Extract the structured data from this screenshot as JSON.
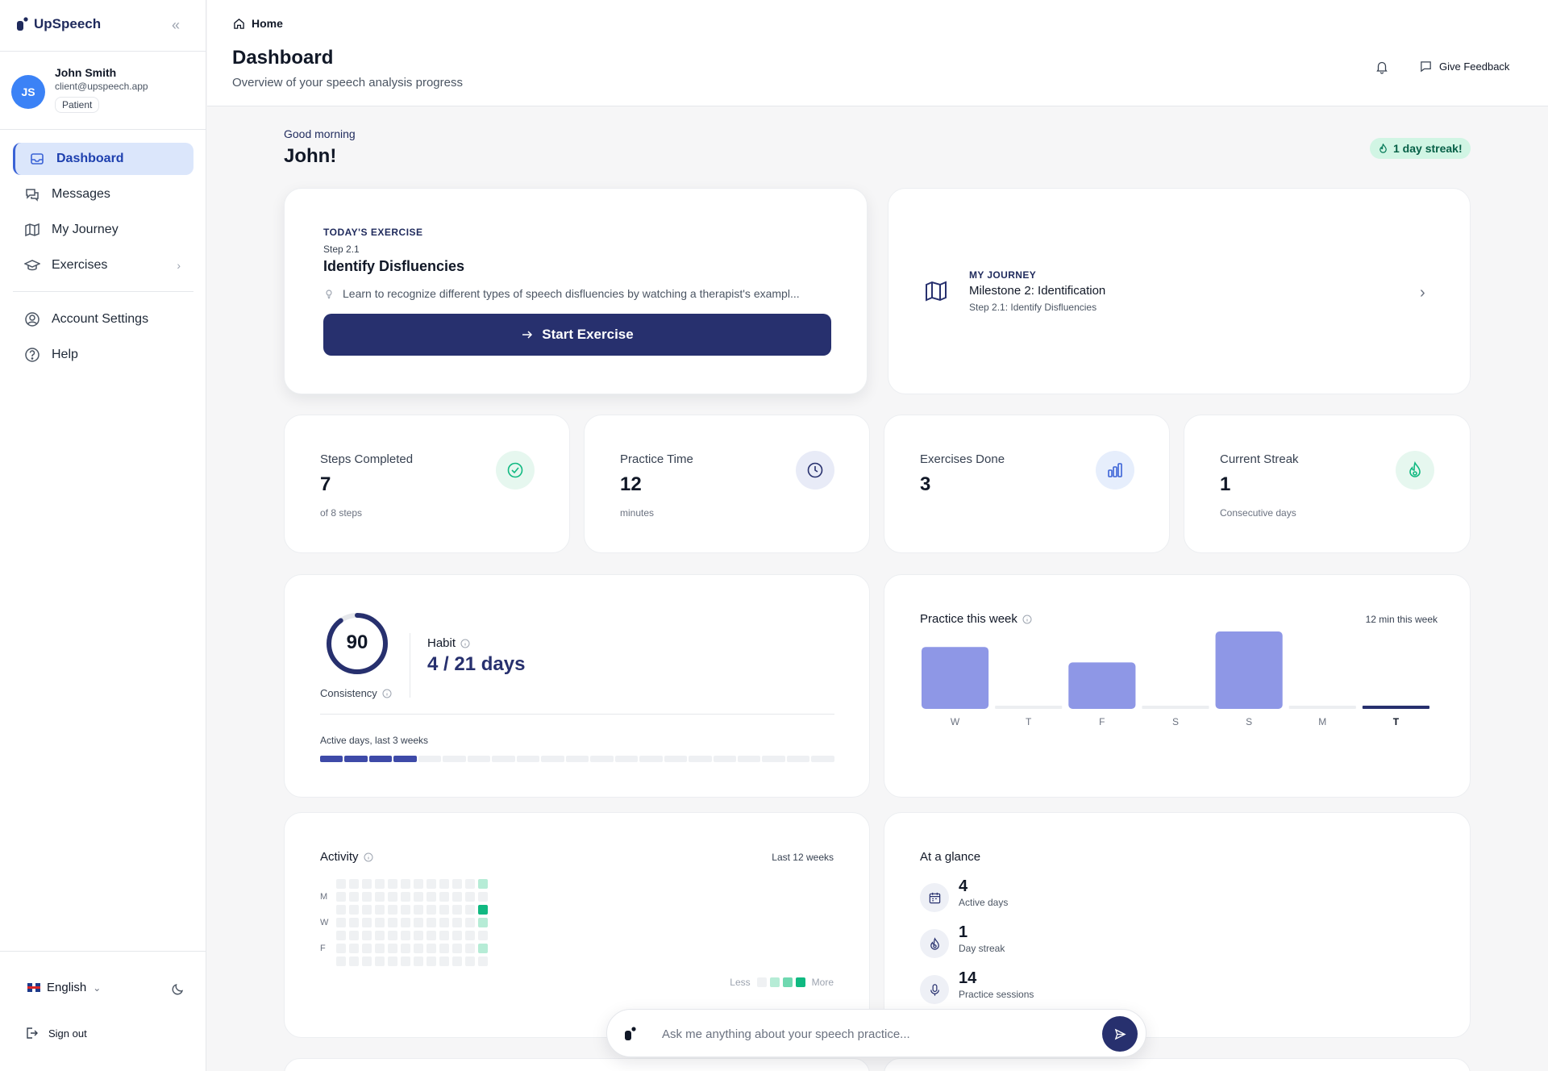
{
  "app": {
    "name": "UpSpeech"
  },
  "user": {
    "initials": "JS",
    "name": "John Smith",
    "email": "client@upspeech.app",
    "role": "Patient"
  },
  "nav": {
    "items": [
      {
        "label": "Dashboard",
        "icon": "inbox-icon",
        "active": true
      },
      {
        "label": "Messages",
        "icon": "chat-bubbles-icon"
      },
      {
        "label": "My Journey",
        "icon": "map-icon"
      },
      {
        "label": "Exercises",
        "icon": "graduation-cap-icon",
        "has_submenu": true
      }
    ],
    "secondary": [
      {
        "label": "Account Settings",
        "icon": "user-circle-icon"
      },
      {
        "label": "Help",
        "icon": "help-circle-icon"
      }
    ]
  },
  "footer": {
    "language": "English",
    "sign_out": "Sign out"
  },
  "header": {
    "breadcrumb": "Home",
    "title": "Dashboard",
    "subtitle": "Overview of your speech analysis progress",
    "feedback": "Give Feedback"
  },
  "greeting": {
    "line1": "Good morning",
    "name": "John!",
    "streak": "1 day streak!"
  },
  "today_exercise": {
    "label": "TODAY'S EXERCISE",
    "step": "Step 2.1",
    "title": "Identify Disfluencies",
    "description": "Learn to recognize different types of speech disfluencies by watching a therapist's exampl...",
    "button": "Start Exercise"
  },
  "journey": {
    "label": "MY JOURNEY",
    "title": "Milestone 2: Identification",
    "subtitle": "Step 2.1: Identify Disfluencies"
  },
  "stats": [
    {
      "label": "Steps Completed",
      "value": "7",
      "sub": "of 8 steps",
      "icon": "check-circle-icon",
      "color": "#10b981",
      "bg": "#e6f7ef"
    },
    {
      "label": "Practice Time",
      "value": "12",
      "sub": "minutes",
      "icon": "clock-icon",
      "color": "#27306e",
      "bg": "#e8ebf7"
    },
    {
      "label": "Exercises Done",
      "value": "3",
      "sub": "",
      "icon": "bar-chart-icon",
      "color": "#3b63d6",
      "bg": "#e6eefc"
    },
    {
      "label": "Current Streak",
      "value": "1",
      "sub": "Consecutive days",
      "icon": "flame-icon",
      "color": "#10b981",
      "bg": "#e6f7ef"
    }
  ],
  "consistency": {
    "score": "90",
    "score_fraction": 0.9,
    "label": "Consistency",
    "habit_label": "Habit",
    "habit_value": "4 / 21 days",
    "active_label": "Active days, last 3 weeks",
    "active_days": 4,
    "total_days": 21
  },
  "practice_week": {
    "title": "Practice this week",
    "total": "12 min this week"
  },
  "chart_data": {
    "type": "bar",
    "categories": [
      "W",
      "T",
      "F",
      "S",
      "S",
      "M",
      "T"
    ],
    "values": [
      4,
      0,
      3,
      0,
      5,
      0,
      0
    ],
    "highlight_index": 6
  },
  "activity": {
    "title": "Activity",
    "range": "Last 12 weeks",
    "day_labels": [
      "M",
      "W",
      "F"
    ],
    "legend_less": "Less",
    "legend_more": "More",
    "colors": [
      "#eff1f3",
      "#b6ecd6",
      "#6fd8b0",
      "#10b981"
    ],
    "last_week_levels": [
      1,
      0,
      3,
      1,
      0,
      1,
      0
    ]
  },
  "glance": {
    "title": "At a glance",
    "items": [
      {
        "value": "4",
        "label": "Active days",
        "icon": "calendar-icon"
      },
      {
        "value": "1",
        "label": "Day streak",
        "icon": "flame-icon"
      },
      {
        "value": "14",
        "label": "Practice sessions",
        "icon": "microphone-icon"
      }
    ]
  },
  "chat": {
    "placeholder": "Ask me anything about your speech practice..."
  }
}
